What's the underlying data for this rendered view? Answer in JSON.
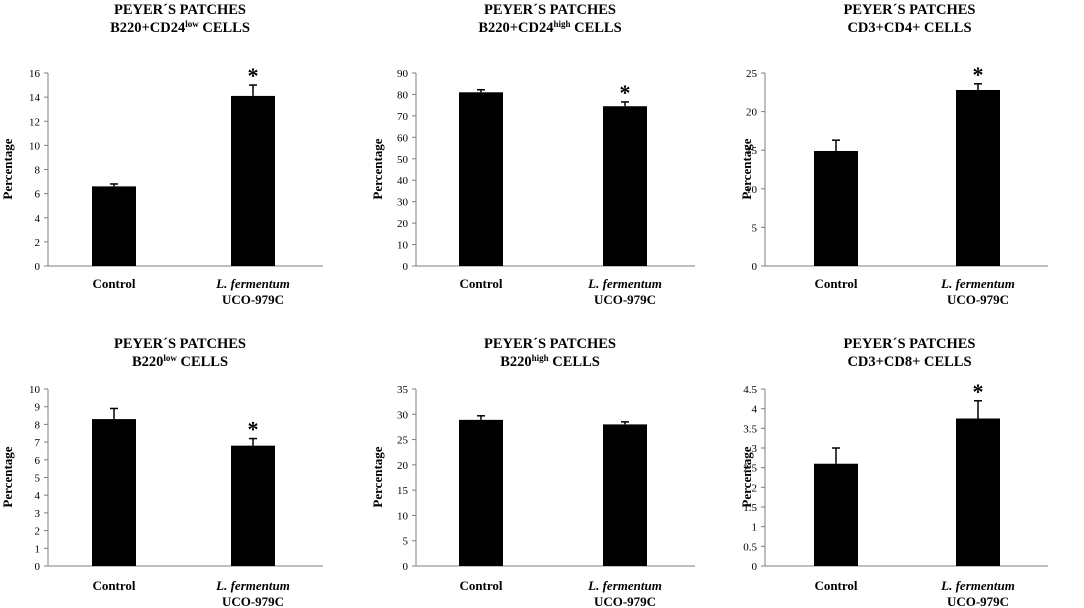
{
  "chart_data": [
    {
      "type": "bar",
      "title_line1": "PEYER´S PATCHES",
      "title_pre": "B220+CD24",
      "title_sup": "low",
      "title_post": " CELLS",
      "ylabel": "Percentage",
      "categories": [
        {
          "line1": "Control",
          "line2": ""
        },
        {
          "line1": "L. fermentum",
          "line2": "UCO-979C",
          "italic": true
        }
      ],
      "values": [
        6.6,
        14.1
      ],
      "errors": [
        0.2,
        0.9
      ],
      "significance": [
        "",
        "*"
      ],
      "ylim": [
        0,
        16
      ],
      "yticks": [
        0,
        2,
        4,
        6,
        8,
        10,
        12,
        14,
        16
      ]
    },
    {
      "type": "bar",
      "title_line1": "PEYER´S PATCHES",
      "title_pre": "B220+CD24",
      "title_sup": "high",
      "title_post": " CELLS",
      "ylabel": "Percentage",
      "categories": [
        {
          "line1": "Control",
          "line2": ""
        },
        {
          "line1": "L. fermentum",
          "line2": "UCO-979C",
          "italic": true
        }
      ],
      "values": [
        81,
        74.5
      ],
      "errors": [
        1.2,
        2.0
      ],
      "significance": [
        "",
        "*"
      ],
      "ylim": [
        0,
        90
      ],
      "yticks": [
        0,
        10,
        20,
        30,
        40,
        50,
        60,
        70,
        80,
        90
      ]
    },
    {
      "type": "bar",
      "title_line1": "PEYER´S PATCHES",
      "title_pre": "CD3+CD4+ CELLS",
      "title_sup": "",
      "title_post": "",
      "ylabel": "Percentage",
      "categories": [
        {
          "line1": "Control",
          "line2": ""
        },
        {
          "line1": "L. fermentum",
          "line2": "UCO-979C",
          "italic": true
        }
      ],
      "values": [
        14.9,
        22.8
      ],
      "errors": [
        1.4,
        0.8
      ],
      "significance": [
        "",
        "*"
      ],
      "ylim": [
        0,
        25
      ],
      "yticks": [
        0,
        5,
        10,
        15,
        20,
        25
      ]
    },
    {
      "type": "bar",
      "title_line1": "PEYER´S PATCHES",
      "title_pre": "B220",
      "title_sup": "low",
      "title_post": " CELLS",
      "ylabel": "Percentage",
      "categories": [
        {
          "line1": "Control",
          "line2": ""
        },
        {
          "line1": "L. fermentum",
          "line2": "UCO-979C",
          "italic": true
        }
      ],
      "values": [
        8.3,
        6.8
      ],
      "errors": [
        0.6,
        0.4
      ],
      "significance": [
        "",
        "*"
      ],
      "ylim": [
        0,
        10
      ],
      "yticks": [
        0,
        1,
        2,
        3,
        4,
        5,
        6,
        7,
        8,
        9,
        10
      ]
    },
    {
      "type": "bar",
      "title_line1": "PEYER´S PATCHES",
      "title_pre": "B220",
      "title_sup": "high",
      "title_post": " CELLS",
      "ylabel": "Percentage",
      "categories": [
        {
          "line1": "Control",
          "line2": ""
        },
        {
          "line1": "L. fermentum",
          "line2": "UCO-979C",
          "italic": true
        }
      ],
      "values": [
        28.9,
        28
      ],
      "errors": [
        0.8,
        0.5
      ],
      "significance": [
        "",
        ""
      ],
      "ylim": [
        0,
        35
      ],
      "yticks": [
        0,
        5,
        10,
        15,
        20,
        25,
        30,
        35
      ]
    },
    {
      "type": "bar",
      "title_line1": "PEYER´S PATCHES",
      "title_pre": "CD3+CD8+ CELLS",
      "title_sup": "",
      "title_post": "",
      "ylabel": "Percentage",
      "categories": [
        {
          "line1": "Control",
          "line2": ""
        },
        {
          "line1": "L. fermentum",
          "line2": "UCO-979C",
          "italic": true
        }
      ],
      "values": [
        2.6,
        3.75
      ],
      "errors": [
        0.4,
        0.45
      ],
      "significance": [
        "",
        "*"
      ],
      "ylim": [
        0,
        4.5
      ],
      "yticks": [
        0,
        0.5,
        1,
        1.5,
        2,
        2.5,
        3,
        3.5,
        4,
        4.5
      ]
    }
  ]
}
